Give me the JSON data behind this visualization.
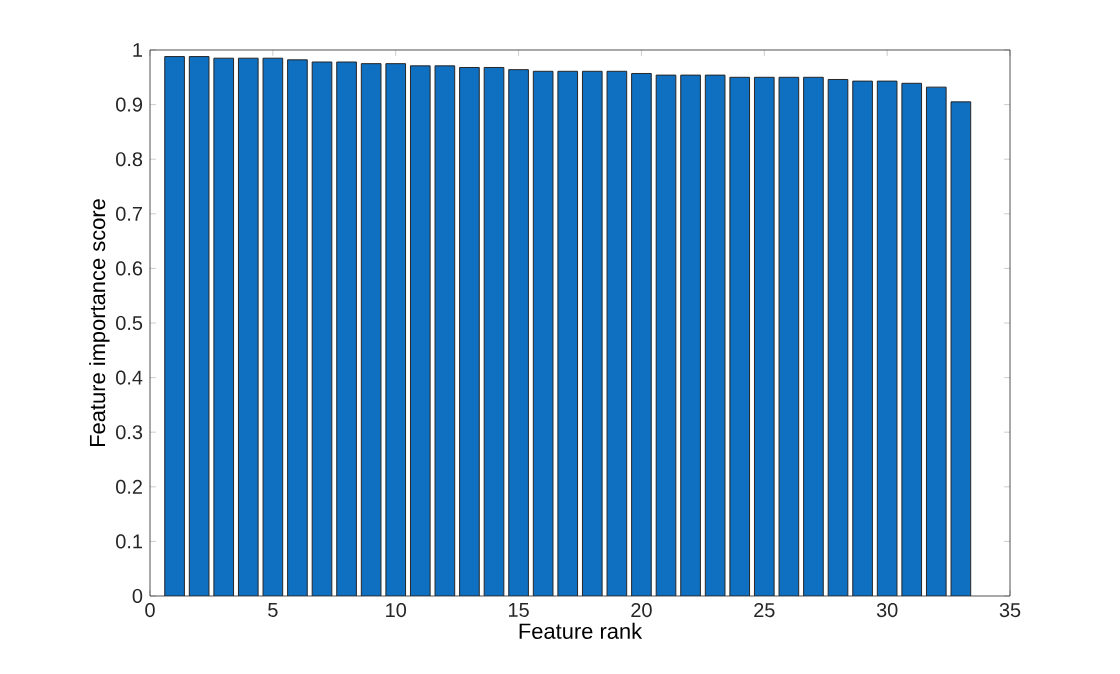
{
  "chart_data": {
    "type": "bar",
    "xlabel": "Feature rank",
    "ylabel": "Feature importance score",
    "x": [
      1,
      2,
      3,
      4,
      5,
      6,
      7,
      8,
      9,
      10,
      11,
      12,
      13,
      14,
      15,
      16,
      17,
      18,
      19,
      20,
      21,
      22,
      23,
      24,
      25,
      26,
      27,
      28,
      29,
      30,
      31,
      32,
      33
    ],
    "values": [
      0.988,
      0.988,
      0.985,
      0.985,
      0.985,
      0.982,
      0.978,
      0.978,
      0.975,
      0.975,
      0.971,
      0.971,
      0.968,
      0.968,
      0.964,
      0.961,
      0.961,
      0.961,
      0.961,
      0.957,
      0.954,
      0.954,
      0.954,
      0.95,
      0.95,
      0.95,
      0.95,
      0.946,
      0.943,
      0.943,
      0.939,
      0.932,
      0.905
    ],
    "color": "#0f6fc0",
    "xlim": [
      0,
      35
    ],
    "xticks": [
      0,
      5,
      10,
      15,
      20,
      25,
      30,
      35
    ],
    "ylim": [
      0,
      1
    ],
    "yticks": [
      0,
      0.1,
      0.2,
      0.3,
      0.4,
      0.5,
      0.6,
      0.7,
      0.8,
      0.9,
      1
    ],
    "grid": false,
    "legend": false
  }
}
